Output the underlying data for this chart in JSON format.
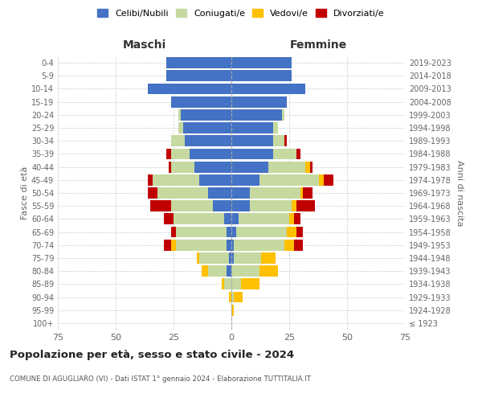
{
  "age_groups": [
    "100+",
    "95-99",
    "90-94",
    "85-89",
    "80-84",
    "75-79",
    "70-74",
    "65-69",
    "60-64",
    "55-59",
    "50-54",
    "45-49",
    "40-44",
    "35-39",
    "30-34",
    "25-29",
    "20-24",
    "15-19",
    "10-14",
    "5-9",
    "0-4"
  ],
  "birth_years": [
    "≤ 1923",
    "1924-1928",
    "1929-1933",
    "1934-1938",
    "1939-1943",
    "1944-1948",
    "1949-1953",
    "1954-1958",
    "1959-1963",
    "1964-1968",
    "1969-1973",
    "1974-1978",
    "1979-1983",
    "1984-1988",
    "1989-1993",
    "1994-1998",
    "1999-2003",
    "2004-2008",
    "2009-2013",
    "2014-2018",
    "2019-2023"
  ],
  "maschi": {
    "celibi": [
      0,
      0,
      0,
      0,
      2,
      1,
      2,
      2,
      3,
      8,
      10,
      14,
      16,
      18,
      20,
      21,
      22,
      26,
      36,
      28,
      28
    ],
    "coniugati": [
      0,
      0,
      0,
      3,
      8,
      13,
      22,
      22,
      22,
      18,
      22,
      20,
      10,
      8,
      6,
      2,
      1,
      0,
      0,
      0,
      0
    ],
    "vedovi": [
      0,
      0,
      1,
      1,
      3,
      1,
      2,
      0,
      0,
      0,
      0,
      0,
      0,
      0,
      0,
      0,
      0,
      0,
      0,
      0,
      0
    ],
    "divorziati": [
      0,
      0,
      0,
      0,
      0,
      0,
      3,
      2,
      4,
      9,
      4,
      2,
      1,
      2,
      0,
      0,
      0,
      0,
      0,
      0,
      0
    ]
  },
  "femmine": {
    "nubili": [
      0,
      0,
      0,
      0,
      0,
      1,
      1,
      2,
      3,
      8,
      8,
      12,
      16,
      18,
      18,
      18,
      22,
      24,
      32,
      26,
      26
    ],
    "coniugate": [
      0,
      0,
      1,
      4,
      12,
      12,
      22,
      22,
      22,
      18,
      22,
      26,
      16,
      10,
      5,
      2,
      1,
      0,
      0,
      0,
      0
    ],
    "vedove": [
      0,
      1,
      4,
      8,
      8,
      6,
      4,
      4,
      2,
      2,
      1,
      2,
      2,
      0,
      0,
      0,
      0,
      0,
      0,
      0,
      0
    ],
    "divorziate": [
      0,
      0,
      0,
      0,
      0,
      0,
      4,
      3,
      3,
      8,
      4,
      4,
      1,
      2,
      1,
      0,
      0,
      0,
      0,
      0,
      0
    ]
  },
  "colors": {
    "celibi": "#4472c4",
    "coniugati": "#c5d9a0",
    "vedovi": "#ffc000",
    "divorziati": "#c00000"
  },
  "xlim": 75,
  "xlabel_maschi": "Maschi",
  "xlabel_femmine": "Femmine",
  "ylabel_left": "Fasce di età",
  "ylabel_right": "Anni di nascita",
  "title": "Popolazione per età, sesso e stato civile - 2024",
  "subtitle": "COMUNE DI AGUGLIARO (VI) - Dati ISTAT 1° gennaio 2024 - Elaborazione TUTTITALIA.IT",
  "legend_labels": [
    "Celibi/Nubili",
    "Coniugati/e",
    "Vedovi/e",
    "Divorziati/e"
  ],
  "background_color": "#ffffff",
  "bar_height": 0.85
}
